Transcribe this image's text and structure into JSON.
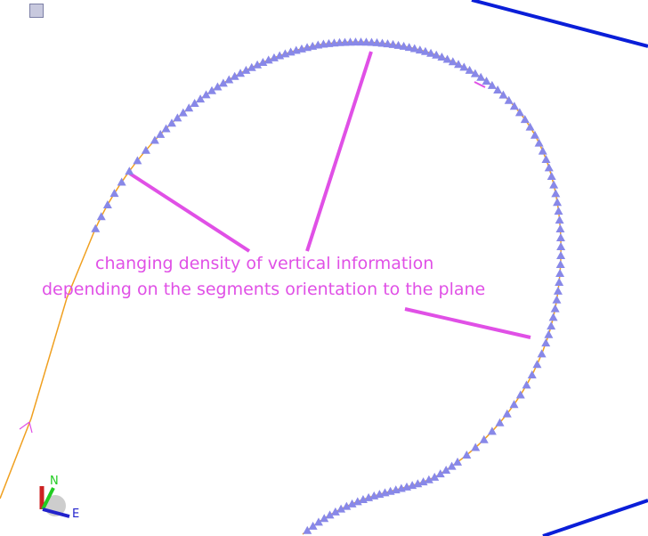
{
  "annotation": {
    "line1": "changing density of vertical information",
    "line2": "depending on the segments orientation to the plane"
  },
  "compass": {
    "north_label": "N",
    "east_label": "E"
  },
  "colors": {
    "track": "#f0a020",
    "markers": "#8888e8",
    "annotation": "#e050e6",
    "blue_line": "#0a1ed8",
    "north_axis": "#22cc22",
    "east_axis": "#2222cc",
    "up_axis": "#cc2222"
  }
}
